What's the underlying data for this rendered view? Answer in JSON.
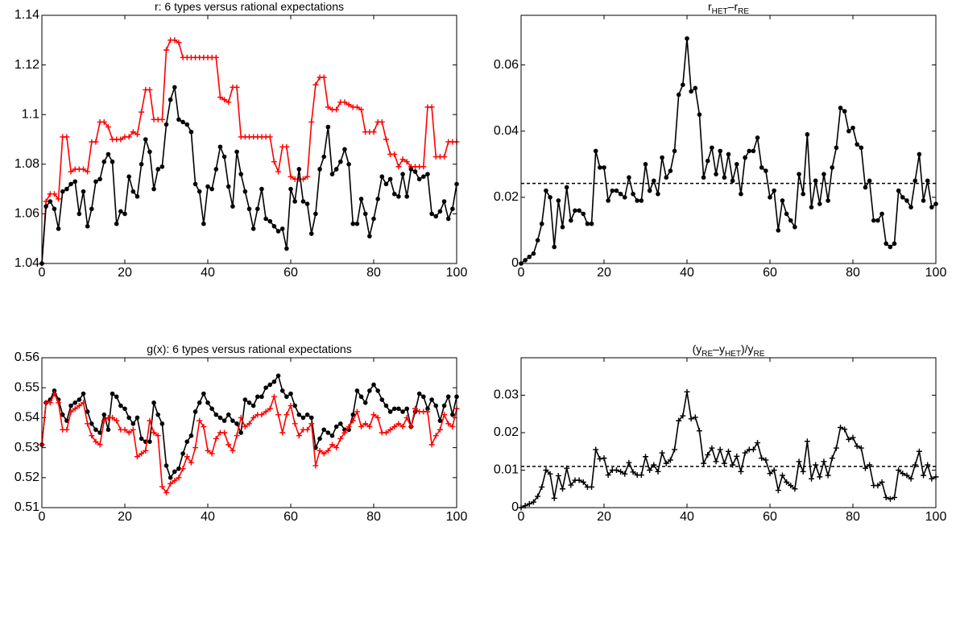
{
  "chart_data": [
    {
      "type": "line",
      "title": [
        {
          "text": "r: 6 types versus rational expectations"
        }
      ],
      "x": [
        0,
        1,
        2,
        3,
        4,
        5,
        6,
        7,
        8,
        9,
        10,
        11,
        12,
        13,
        14,
        15,
        16,
        17,
        18,
        19,
        20,
        21,
        22,
        23,
        24,
        25,
        26,
        27,
        28,
        29,
        30,
        31,
        32,
        33,
        34,
        35,
        36,
        37,
        38,
        39,
        40,
        41,
        42,
        43,
        44,
        45,
        46,
        47,
        48,
        49,
        50,
        51,
        52,
        53,
        54,
        55,
        56,
        57,
        58,
        59,
        60,
        61,
        62,
        63,
        64,
        65,
        66,
        67,
        68,
        69,
        70,
        71,
        72,
        73,
        74,
        75,
        76,
        77,
        78,
        79,
        80,
        81,
        82,
        83,
        84,
        85,
        86,
        87,
        88,
        89,
        90,
        91,
        92,
        93,
        94,
        95,
        96,
        97,
        98,
        99,
        100
      ],
      "xlim": [
        0,
        100
      ],
      "xticks": [
        0,
        20,
        40,
        60,
        80,
        100
      ],
      "ylim": [
        1.04,
        1.14
      ],
      "yticks": [
        1.04,
        1.06,
        1.08,
        1.1,
        1.12,
        1.14
      ],
      "series": [
        {
          "color": "#ff0000",
          "marker": "plus",
          "values": [
            1.04,
            1.065,
            1.068,
            1.068,
            1.066,
            1.091,
            1.091,
            1.077,
            1.078,
            1.078,
            1.078,
            1.077,
            1.089,
            1.089,
            1.097,
            1.097,
            1.095,
            1.09,
            1.09,
            1.09,
            1.091,
            1.091,
            1.093,
            1.092,
            1.101,
            1.11,
            1.11,
            1.098,
            1.098,
            1.098,
            1.126,
            1.13,
            1.13,
            1.129,
            1.123,
            1.123,
            1.123,
            1.123,
            1.123,
            1.123,
            1.123,
            1.123,
            1.123,
            1.107,
            1.106,
            1.105,
            1.111,
            1.111,
            1.091,
            1.091,
            1.091,
            1.091,
            1.091,
            1.091,
            1.091,
            1.091,
            1.081,
            1.077,
            1.087,
            1.087,
            1.075,
            1.074,
            1.074,
            1.074,
            1.075,
            1.097,
            1.112,
            1.115,
            1.115,
            1.103,
            1.102,
            1.102,
            1.105,
            1.105,
            1.104,
            1.103,
            1.103,
            1.102,
            1.093,
            1.093,
            1.093,
            1.097,
            1.097,
            1.09,
            1.084,
            1.084,
            1.079,
            1.082,
            1.081,
            1.079,
            1.079,
            1.079,
            1.079,
            1.103,
            1.103,
            1.083,
            1.083,
            1.083,
            1.089,
            1.089,
            1.089
          ]
        },
        {
          "color": "#000000",
          "marker": "dot",
          "values": [
            1.04,
            1.063,
            1.065,
            1.062,
            1.054,
            1.069,
            1.07,
            1.072,
            1.073,
            1.06,
            1.069,
            1.055,
            1.062,
            1.073,
            1.074,
            1.081,
            1.084,
            1.081,
            1.056,
            1.061,
            1.06,
            1.075,
            1.069,
            1.067,
            1.08,
            1.09,
            1.085,
            1.07,
            1.078,
            1.079,
            1.096,
            1.106,
            1.111,
            1.098,
            1.097,
            1.096,
            1.093,
            1.072,
            1.069,
            1.056,
            1.071,
            1.07,
            1.078,
            1.087,
            1.083,
            1.071,
            1.063,
            1.085,
            1.076,
            1.069,
            1.062,
            1.054,
            1.062,
            1.07,
            1.058,
            1.057,
            1.055,
            1.053,
            1.054,
            1.046,
            1.07,
            1.065,
            1.078,
            1.065,
            1.064,
            1.052,
            1.06,
            1.078,
            1.083,
            1.095,
            1.076,
            1.078,
            1.081,
            1.086,
            1.08,
            1.056,
            1.056,
            1.066,
            1.06,
            1.051,
            1.058,
            1.066,
            1.075,
            1.072,
            1.074,
            1.068,
            1.067,
            1.076,
            1.067,
            1.078,
            1.077,
            1.074,
            1.075,
            1.076,
            1.06,
            1.059,
            1.061,
            1.065,
            1.058,
            1.062,
            1.072
          ]
        }
      ]
    },
    {
      "type": "line",
      "title": [
        {
          "text": "r"
        },
        {
          "text": "HET",
          "sub": true
        },
        {
          "text": "–r"
        },
        {
          "text": "RE",
          "sub": true
        }
      ],
      "x": [
        0,
        1,
        2,
        3,
        4,
        5,
        6,
        7,
        8,
        9,
        10,
        11,
        12,
        13,
        14,
        15,
        16,
        17,
        18,
        19,
        20,
        21,
        22,
        23,
        24,
        25,
        26,
        27,
        28,
        29,
        30,
        31,
        32,
        33,
        34,
        35,
        36,
        37,
        38,
        39,
        40,
        41,
        42,
        43,
        44,
        45,
        46,
        47,
        48,
        49,
        50,
        51,
        52,
        53,
        54,
        55,
        56,
        57,
        58,
        59,
        60,
        61,
        62,
        63,
        64,
        65,
        66,
        67,
        68,
        69,
        70,
        71,
        72,
        73,
        74,
        75,
        76,
        77,
        78,
        79,
        80,
        81,
        82,
        83,
        84,
        85,
        86,
        87,
        88,
        89,
        90,
        91,
        92,
        93,
        94,
        95,
        96,
        97,
        98,
        99,
        100
      ],
      "xlim": [
        0,
        100
      ],
      "xticks": [
        0,
        20,
        40,
        60,
        80,
        100
      ],
      "ylim": [
        0,
        0.075
      ],
      "yticks": [
        0,
        0.02,
        0.04,
        0.06
      ],
      "hline": 0.0242,
      "series": [
        {
          "color": "#000000",
          "marker": "dot",
          "values": [
            0,
            0.001,
            0.002,
            0.003,
            0.007,
            0.012,
            0.022,
            0.02,
            0.005,
            0.019,
            0.011,
            0.023,
            0.013,
            0.016,
            0.016,
            0.015,
            0.012,
            0.012,
            0.034,
            0.029,
            0.029,
            0.019,
            0.022,
            0.022,
            0.021,
            0.02,
            0.026,
            0.021,
            0.019,
            0.019,
            0.03,
            0.022,
            0.025,
            0.021,
            0.032,
            0.026,
            0.028,
            0.034,
            0.051,
            0.054,
            0.068,
            0.052,
            0.053,
            0.045,
            0.026,
            0.031,
            0.035,
            0.027,
            0.034,
            0.026,
            0.033,
            0.025,
            0.03,
            0.021,
            0.032,
            0.034,
            0.034,
            0.038,
            0.029,
            0.028,
            0.02,
            0.022,
            0.01,
            0.019,
            0.015,
            0.013,
            0.011,
            0.027,
            0.021,
            0.039,
            0.017,
            0.025,
            0.018,
            0.027,
            0.019,
            0.029,
            0.035,
            0.047,
            0.046,
            0.04,
            0.041,
            0.036,
            0.035,
            0.023,
            0.025,
            0.013,
            0.013,
            0.015,
            0.006,
            0.005,
            0.006,
            0.022,
            0.02,
            0.019,
            0.017,
            0.025,
            0.033,
            0.019,
            0.025,
            0.017,
            0.018
          ]
        }
      ]
    },
    {
      "type": "line",
      "title": [
        {
          "text": "g(x): 6 types versus rational expectations"
        }
      ],
      "x": [
        0,
        1,
        2,
        3,
        4,
        5,
        6,
        7,
        8,
        9,
        10,
        11,
        12,
        13,
        14,
        15,
        16,
        17,
        18,
        19,
        20,
        21,
        22,
        23,
        24,
        25,
        26,
        27,
        28,
        29,
        30,
        31,
        32,
        33,
        34,
        35,
        36,
        37,
        38,
        39,
        40,
        41,
        42,
        43,
        44,
        45,
        46,
        47,
        48,
        49,
        50,
        51,
        52,
        53,
        54,
        55,
        56,
        57,
        58,
        59,
        60,
        61,
        62,
        63,
        64,
        65,
        66,
        67,
        68,
        69,
        70,
        71,
        72,
        73,
        74,
        75,
        76,
        77,
        78,
        79,
        80,
        81,
        82,
        83,
        84,
        85,
        86,
        87,
        88,
        89,
        90,
        91,
        92,
        93,
        94,
        95,
        96,
        97,
        98,
        99,
        100
      ],
      "xlim": [
        0,
        100
      ],
      "xticks": [
        0,
        20,
        40,
        60,
        80,
        100
      ],
      "ylim": [
        0.51,
        0.56
      ],
      "yticks": [
        0.51,
        0.52,
        0.53,
        0.54,
        0.55,
        0.56
      ],
      "series": [
        {
          "color": "#000000",
          "marker": "dot",
          "values": [
            0.531,
            0.545,
            0.546,
            0.549,
            0.546,
            0.541,
            0.539,
            0.544,
            0.545,
            0.546,
            0.548,
            0.542,
            0.538,
            0.536,
            0.535,
            0.541,
            0.536,
            0.548,
            0.547,
            0.544,
            0.543,
            0.54,
            0.538,
            0.54,
            0.533,
            0.532,
            0.532,
            0.545,
            0.541,
            0.538,
            0.524,
            0.52,
            0.522,
            0.523,
            0.528,
            0.532,
            0.534,
            0.542,
            0.545,
            0.548,
            0.545,
            0.543,
            0.541,
            0.54,
            0.539,
            0.541,
            0.539,
            0.538,
            0.535,
            0.546,
            0.545,
            0.544,
            0.547,
            0.547,
            0.55,
            0.551,
            0.552,
            0.554,
            0.549,
            0.547,
            0.548,
            0.544,
            0.541,
            0.54,
            0.541,
            0.54,
            0.53,
            0.533,
            0.536,
            0.535,
            0.534,
            0.537,
            0.538,
            0.536,
            0.536,
            0.541,
            0.549,
            0.547,
            0.545,
            0.549,
            0.551,
            0.549,
            0.546,
            0.544,
            0.542,
            0.543,
            0.543,
            0.542,
            0.543,
            0.537,
            0.542,
            0.548,
            0.547,
            0.543,
            0.546,
            0.544,
            0.539,
            0.544,
            0.547,
            0.541,
            0.547
          ]
        },
        {
          "color": "#ff0000",
          "marker": "plus",
          "values": [
            0.531,
            0.545,
            0.545,
            0.548,
            0.545,
            0.536,
            0.536,
            0.542,
            0.543,
            0.544,
            0.545,
            0.538,
            0.534,
            0.532,
            0.531,
            0.539,
            0.54,
            0.54,
            0.539,
            0.536,
            0.536,
            0.535,
            0.536,
            0.527,
            0.528,
            0.529,
            0.539,
            0.535,
            0.534,
            0.517,
            0.515,
            0.518,
            0.519,
            0.52,
            0.523,
            0.527,
            0.525,
            0.53,
            0.539,
            0.537,
            0.529,
            0.528,
            0.533,
            0.535,
            0.535,
            0.531,
            0.529,
            0.534,
            0.54,
            0.537,
            0.538,
            0.54,
            0.541,
            0.541,
            0.542,
            0.543,
            0.547,
            0.541,
            0.535,
            0.541,
            0.544,
            0.538,
            0.534,
            0.536,
            0.536,
            0.538,
            0.524,
            0.529,
            0.528,
            0.529,
            0.531,
            0.53,
            0.533,
            0.535,
            0.537,
            0.539,
            0.542,
            0.537,
            0.538,
            0.537,
            0.541,
            0.54,
            0.535,
            0.535,
            0.536,
            0.537,
            0.538,
            0.537,
            0.54,
            0.537,
            0.543,
            0.542,
            0.542,
            0.542,
            0.531,
            0.534,
            0.536,
            0.541,
            0.538,
            0.537,
            0.543
          ]
        }
      ]
    },
    {
      "type": "line",
      "title": [
        {
          "text": "(y"
        },
        {
          "text": "RE",
          "sub": true
        },
        {
          "text": "–y"
        },
        {
          "text": "HET",
          "sub": true
        },
        {
          "text": ")/y"
        },
        {
          "text": "RE",
          "sub": true
        }
      ],
      "x": [
        0,
        1,
        2,
        3,
        4,
        5,
        6,
        7,
        8,
        9,
        10,
        11,
        12,
        13,
        14,
        15,
        16,
        17,
        18,
        19,
        20,
        21,
        22,
        23,
        24,
        25,
        26,
        27,
        28,
        29,
        30,
        31,
        32,
        33,
        34,
        35,
        36,
        37,
        38,
        39,
        40,
        41,
        42,
        43,
        44,
        45,
        46,
        47,
        48,
        49,
        50,
        51,
        52,
        53,
        54,
        55,
        56,
        57,
        58,
        59,
        60,
        61,
        62,
        63,
        64,
        65,
        66,
        67,
        68,
        69,
        70,
        71,
        72,
        73,
        74,
        75,
        76,
        77,
        78,
        79,
        80,
        81,
        82,
        83,
        84,
        85,
        86,
        87,
        88,
        89,
        90,
        91,
        92,
        93,
        94,
        95,
        96,
        97,
        98,
        99,
        100
      ],
      "xlim": [
        0,
        100
      ],
      "xticks": [
        0,
        20,
        40,
        60,
        80,
        100
      ],
      "ylim": [
        0,
        0.04
      ],
      "yticks": [
        0,
        0.01,
        0.02,
        0.03
      ],
      "hline": 0.011,
      "series": [
        {
          "color": "#000000",
          "marker": "plus",
          "values": [
            0,
            0.0005,
            0.001,
            0.0015,
            0.003,
            0.0055,
            0.01,
            0.009,
            0.0025,
            0.0085,
            0.005,
            0.0105,
            0.006,
            0.0073,
            0.0073,
            0.0068,
            0.0055,
            0.0055,
            0.0155,
            0.013,
            0.0132,
            0.0087,
            0.01,
            0.01,
            0.0096,
            0.009,
            0.012,
            0.0095,
            0.0087,
            0.0087,
            0.0136,
            0.01,
            0.0114,
            0.0096,
            0.0146,
            0.0118,
            0.0127,
            0.0155,
            0.0232,
            0.0245,
            0.0309,
            0.0237,
            0.0241,
            0.0205,
            0.0118,
            0.0141,
            0.0159,
            0.0123,
            0.0155,
            0.0118,
            0.015,
            0.0114,
            0.0137,
            0.0096,
            0.0146,
            0.0155,
            0.0155,
            0.0173,
            0.0132,
            0.0127,
            0.0091,
            0.01,
            0.0046,
            0.0086,
            0.0068,
            0.0059,
            0.005,
            0.0123,
            0.0096,
            0.0177,
            0.0077,
            0.0114,
            0.0082,
            0.0123,
            0.0086,
            0.0132,
            0.0159,
            0.0214,
            0.0209,
            0.0182,
            0.0187,
            0.0164,
            0.0159,
            0.0105,
            0.0114,
            0.0059,
            0.0059,
            0.0068,
            0.0027,
            0.0023,
            0.0027,
            0.01,
            0.0091,
            0.0086,
            0.0077,
            0.0114,
            0.015,
            0.0086,
            0.0114,
            0.0077,
            0.0082
          ]
        }
      ]
    }
  ]
}
